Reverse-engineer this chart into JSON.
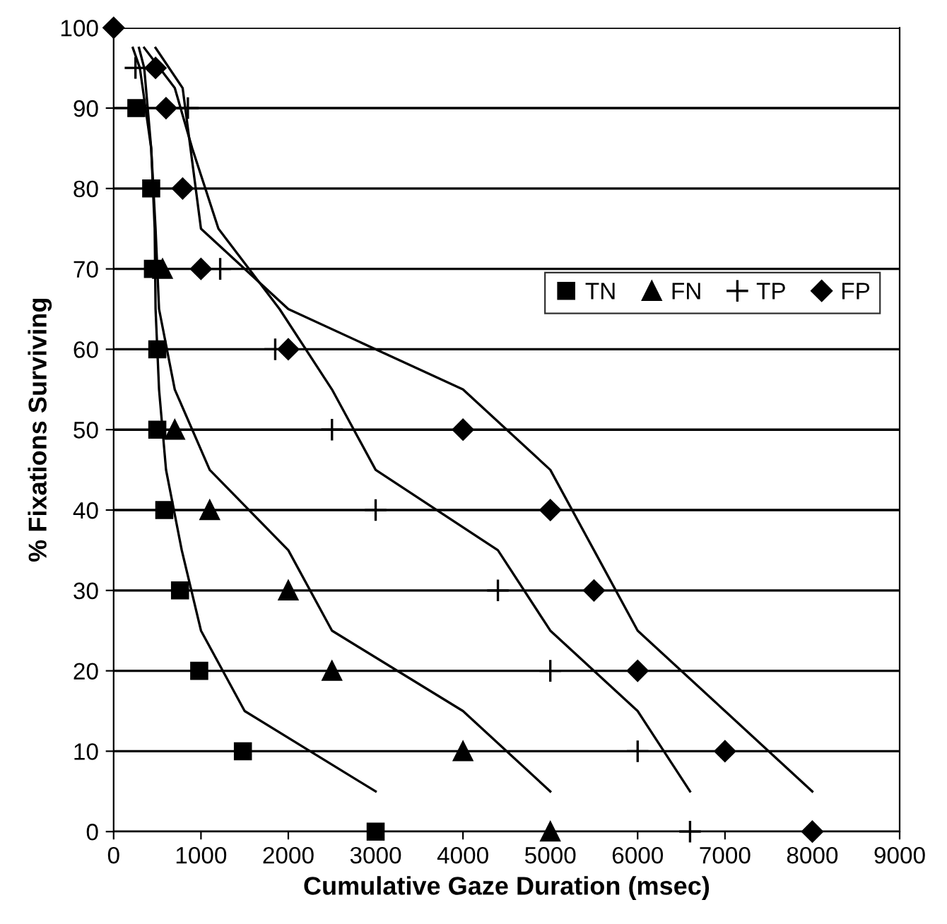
{
  "chart_data": {
    "type": "scatter",
    "xlabel": "Cumulative Gaze Duration (msec)",
    "ylabel": "% Fixations Surviving",
    "xlim": [
      0,
      9000
    ],
    "ylim": [
      0,
      100
    ],
    "xticks": [
      0,
      1000,
      2000,
      3000,
      4000,
      5000,
      6000,
      7000,
      8000,
      9000
    ],
    "yticks": [
      0,
      10,
      20,
      30,
      40,
      50,
      60,
      70,
      80,
      90,
      100
    ],
    "grid": "y",
    "legend": "right",
    "series": [
      {
        "name": "TN",
        "color": "#000000",
        "marker": "square",
        "x": [
          260,
          430,
          450,
          500,
          500,
          580,
          760,
          980,
          1480,
          3000
        ],
        "values": [
          90,
          80,
          70,
          60,
          50,
          40,
          30,
          20,
          10,
          0
        ]
      },
      {
        "name": "FN",
        "color": "#000000",
        "marker": "triangle",
        "x": [
          560,
          700,
          1100,
          2000,
          2500,
          4000,
          5000
        ],
        "values": [
          70,
          50,
          40,
          30,
          20,
          10,
          0
        ]
      },
      {
        "name": "TP",
        "color": "#000000",
        "marker": "cross",
        "x": [
          250,
          850,
          1220,
          1850,
          2500,
          3000,
          4400,
          5000,
          6000,
          6600
        ],
        "values": [
          95,
          90,
          70,
          60,
          50,
          40,
          30,
          20,
          10,
          0
        ]
      },
      {
        "name": "FP",
        "color": "#000000",
        "marker": "diamond",
        "x": [
          0,
          480,
          600,
          790,
          1000,
          2000,
          4000,
          5000,
          5500,
          6000,
          7000,
          8000
        ],
        "values": [
          100,
          95,
          90,
          80,
          70,
          60,
          50,
          40,
          30,
          20,
          10,
          0
        ]
      },
      {
        "type": "line",
        "color": "#000000",
        "x": [
          220,
          300,
          430,
          470,
          480,
          520,
          600,
          780,
          1000,
          1500,
          3000
        ],
        "values": [
          97.5,
          95,
          85,
          75,
          65,
          55,
          45,
          35,
          25,
          15,
          5
        ]
      },
      {
        "type": "line",
        "color": "#000000",
        "x": [
          290,
          350,
          430,
          480,
          520,
          700,
          1100,
          2000,
          2500,
          4000,
          5000
        ],
        "values": [
          97.5,
          95,
          85,
          75,
          65,
          55,
          45,
          35,
          25,
          15,
          5
        ]
      },
      {
        "type": "line",
        "color": "#000000",
        "x": [
          350,
          700,
          900,
          1200,
          1900,
          2500,
          3000,
          4400,
          5000,
          6000,
          6600
        ],
        "values": [
          97.5,
          92.5,
          85,
          75,
          65,
          55,
          45,
          35,
          25,
          15,
          5
        ]
      },
      {
        "type": "line",
        "color": "#000000",
        "x": [
          480,
          790,
          1000,
          2000,
          4000,
          5000,
          5500,
          6000,
          7000,
          8000
        ],
        "values": [
          97.5,
          92.5,
          75,
          65,
          55,
          45,
          35,
          25,
          15,
          5
        ]
      }
    ]
  }
}
